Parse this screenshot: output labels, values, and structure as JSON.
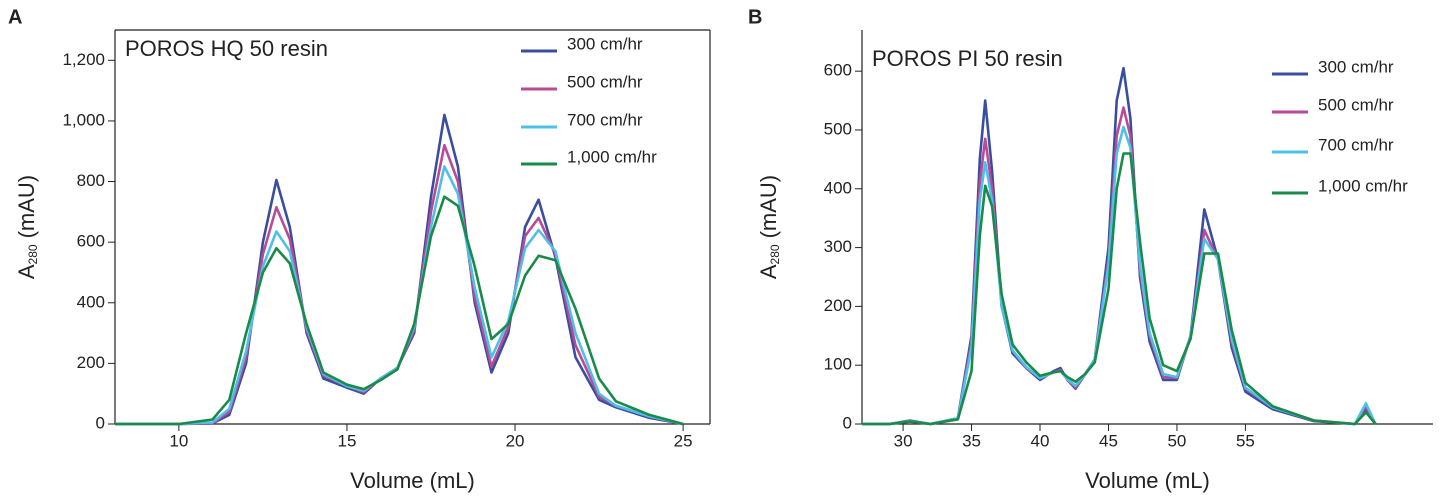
{
  "chart_data": [
    {
      "type": "line",
      "panel_label": "A",
      "annotation": "POROS HQ 50 resin",
      "x_label": "Volume (mL)",
      "y_label": [
        "A",
        "280",
        "(mAU)"
      ],
      "frame": true,
      "xlim": [
        8.1,
        25.8
      ],
      "xticks": [
        10,
        15,
        20,
        25
      ],
      "ylim": [
        0,
        1300
      ],
      "yticks": [
        0,
        200,
        400,
        600,
        800,
        {
          "value": 1000,
          "label": "1,000"
        },
        {
          "value": 1200,
          "label": "1,200"
        }
      ],
      "x": [
        8.1,
        10,
        11,
        11.5,
        12,
        12.5,
        12.9,
        13.3,
        13.8,
        14.3,
        15,
        15.5,
        16,
        16.5,
        17,
        17.5,
        17.9,
        18.3,
        18.8,
        19.3,
        19.8,
        20.3,
        20.7,
        21.2,
        21.8,
        22.5,
        23,
        24,
        25
      ],
      "series": [
        {
          "name": "300 cm/hr",
          "color": "#3a4ea0",
          "values": [
            0,
            0,
            2,
            30,
            200,
            600,
            805,
            650,
            300,
            150,
            120,
            100,
            150,
            185,
            300,
            750,
            1020,
            850,
            400,
            170,
            300,
            650,
            740,
            550,
            220,
            80,
            55,
            20,
            0
          ]
        },
        {
          "name": "500 cm/hr",
          "color": "#b84a96",
          "values": [
            0,
            0,
            3,
            40,
            220,
            560,
            715,
            610,
            310,
            160,
            125,
            105,
            150,
            185,
            310,
            700,
            920,
            800,
            420,
            190,
            320,
            620,
            680,
            560,
            260,
            90,
            60,
            25,
            0
          ]
        },
        {
          "name": "700 cm/hr",
          "color": "#4ec0e8",
          "values": [
            0,
            0,
            5,
            50,
            240,
            520,
            635,
            570,
            320,
            165,
            125,
            110,
            150,
            185,
            320,
            650,
            850,
            760,
            450,
            220,
            340,
            580,
            640,
            570,
            300,
            100,
            60,
            25,
            0
          ]
        },
        {
          "name": "1,000 cm/hr",
          "color": "#1a8a4a",
          "values": [
            0,
            0,
            15,
            80,
            300,
            500,
            580,
            530,
            330,
            170,
            130,
            115,
            145,
            180,
            330,
            620,
            750,
            720,
            520,
            280,
            330,
            490,
            555,
            540,
            380,
            150,
            75,
            30,
            0
          ]
        }
      ]
    },
    {
      "type": "line",
      "panel_label": "B",
      "annotation": "POROS PI 50 resin",
      "x_label": "Volume (mL)",
      "y_label": [
        "A",
        "280",
        "(mAU)"
      ],
      "frame": false,
      "xlim": [
        27,
        68.7
      ],
      "xticks": [
        30,
        35,
        40,
        45,
        50,
        55
      ],
      "ylim": [
        0,
        670
      ],
      "yticks": [
        0,
        100,
        200,
        300,
        400,
        500,
        600
      ],
      "x": [
        27,
        29,
        30.5,
        32,
        34,
        35,
        35.6,
        36,
        36.5,
        37.2,
        38,
        39,
        40,
        41,
        41.5,
        42,
        42.6,
        43.3,
        44,
        45,
        45.6,
        46.1,
        46.6,
        47.3,
        48,
        49,
        50,
        51,
        52,
        53,
        54,
        55,
        57,
        60,
        63,
        63.8,
        64.5
      ],
      "series": [
        {
          "name": "300 cm/hr",
          "color": "#3a4ea0",
          "values": [
            0,
            0,
            6,
            0,
            10,
            150,
            450,
            550,
            430,
            200,
            120,
            95,
            75,
            90,
            95,
            75,
            60,
            85,
            110,
            300,
            550,
            605,
            520,
            250,
            140,
            75,
            75,
            150,
            365,
            280,
            130,
            55,
            25,
            5,
            0,
            25,
            0
          ]
        },
        {
          "name": "500 cm/hr",
          "color": "#b84a96",
          "values": [
            0,
            0,
            5,
            0,
            10,
            140,
            410,
            485,
            400,
            200,
            125,
            95,
            78,
            88,
            92,
            75,
            62,
            85,
            110,
            280,
            490,
            538,
            490,
            260,
            150,
            80,
            78,
            150,
            330,
            280,
            140,
            60,
            28,
            6,
            0,
            30,
            0
          ]
        },
        {
          "name": "700 cm/hr",
          "color": "#4ec0e8",
          "values": [
            0,
            0,
            5,
            0,
            10,
            130,
            380,
            445,
            380,
            200,
            125,
            97,
            78,
            88,
            90,
            76,
            65,
            85,
            110,
            270,
            460,
            505,
            470,
            270,
            155,
            85,
            80,
            150,
            315,
            280,
            145,
            62,
            28,
            6,
            0,
            35,
            0
          ]
        },
        {
          "name": "1,000 cm/hr",
          "color": "#1a8a4a",
          "values": [
            0,
            0,
            4,
            0,
            8,
            90,
            320,
            405,
            370,
            220,
            135,
            105,
            82,
            88,
            90,
            80,
            72,
            85,
            105,
            230,
            400,
            460,
            460,
            310,
            180,
            100,
            90,
            145,
            290,
            290,
            160,
            70,
            30,
            6,
            0,
            20,
            0
          ]
        }
      ]
    }
  ]
}
